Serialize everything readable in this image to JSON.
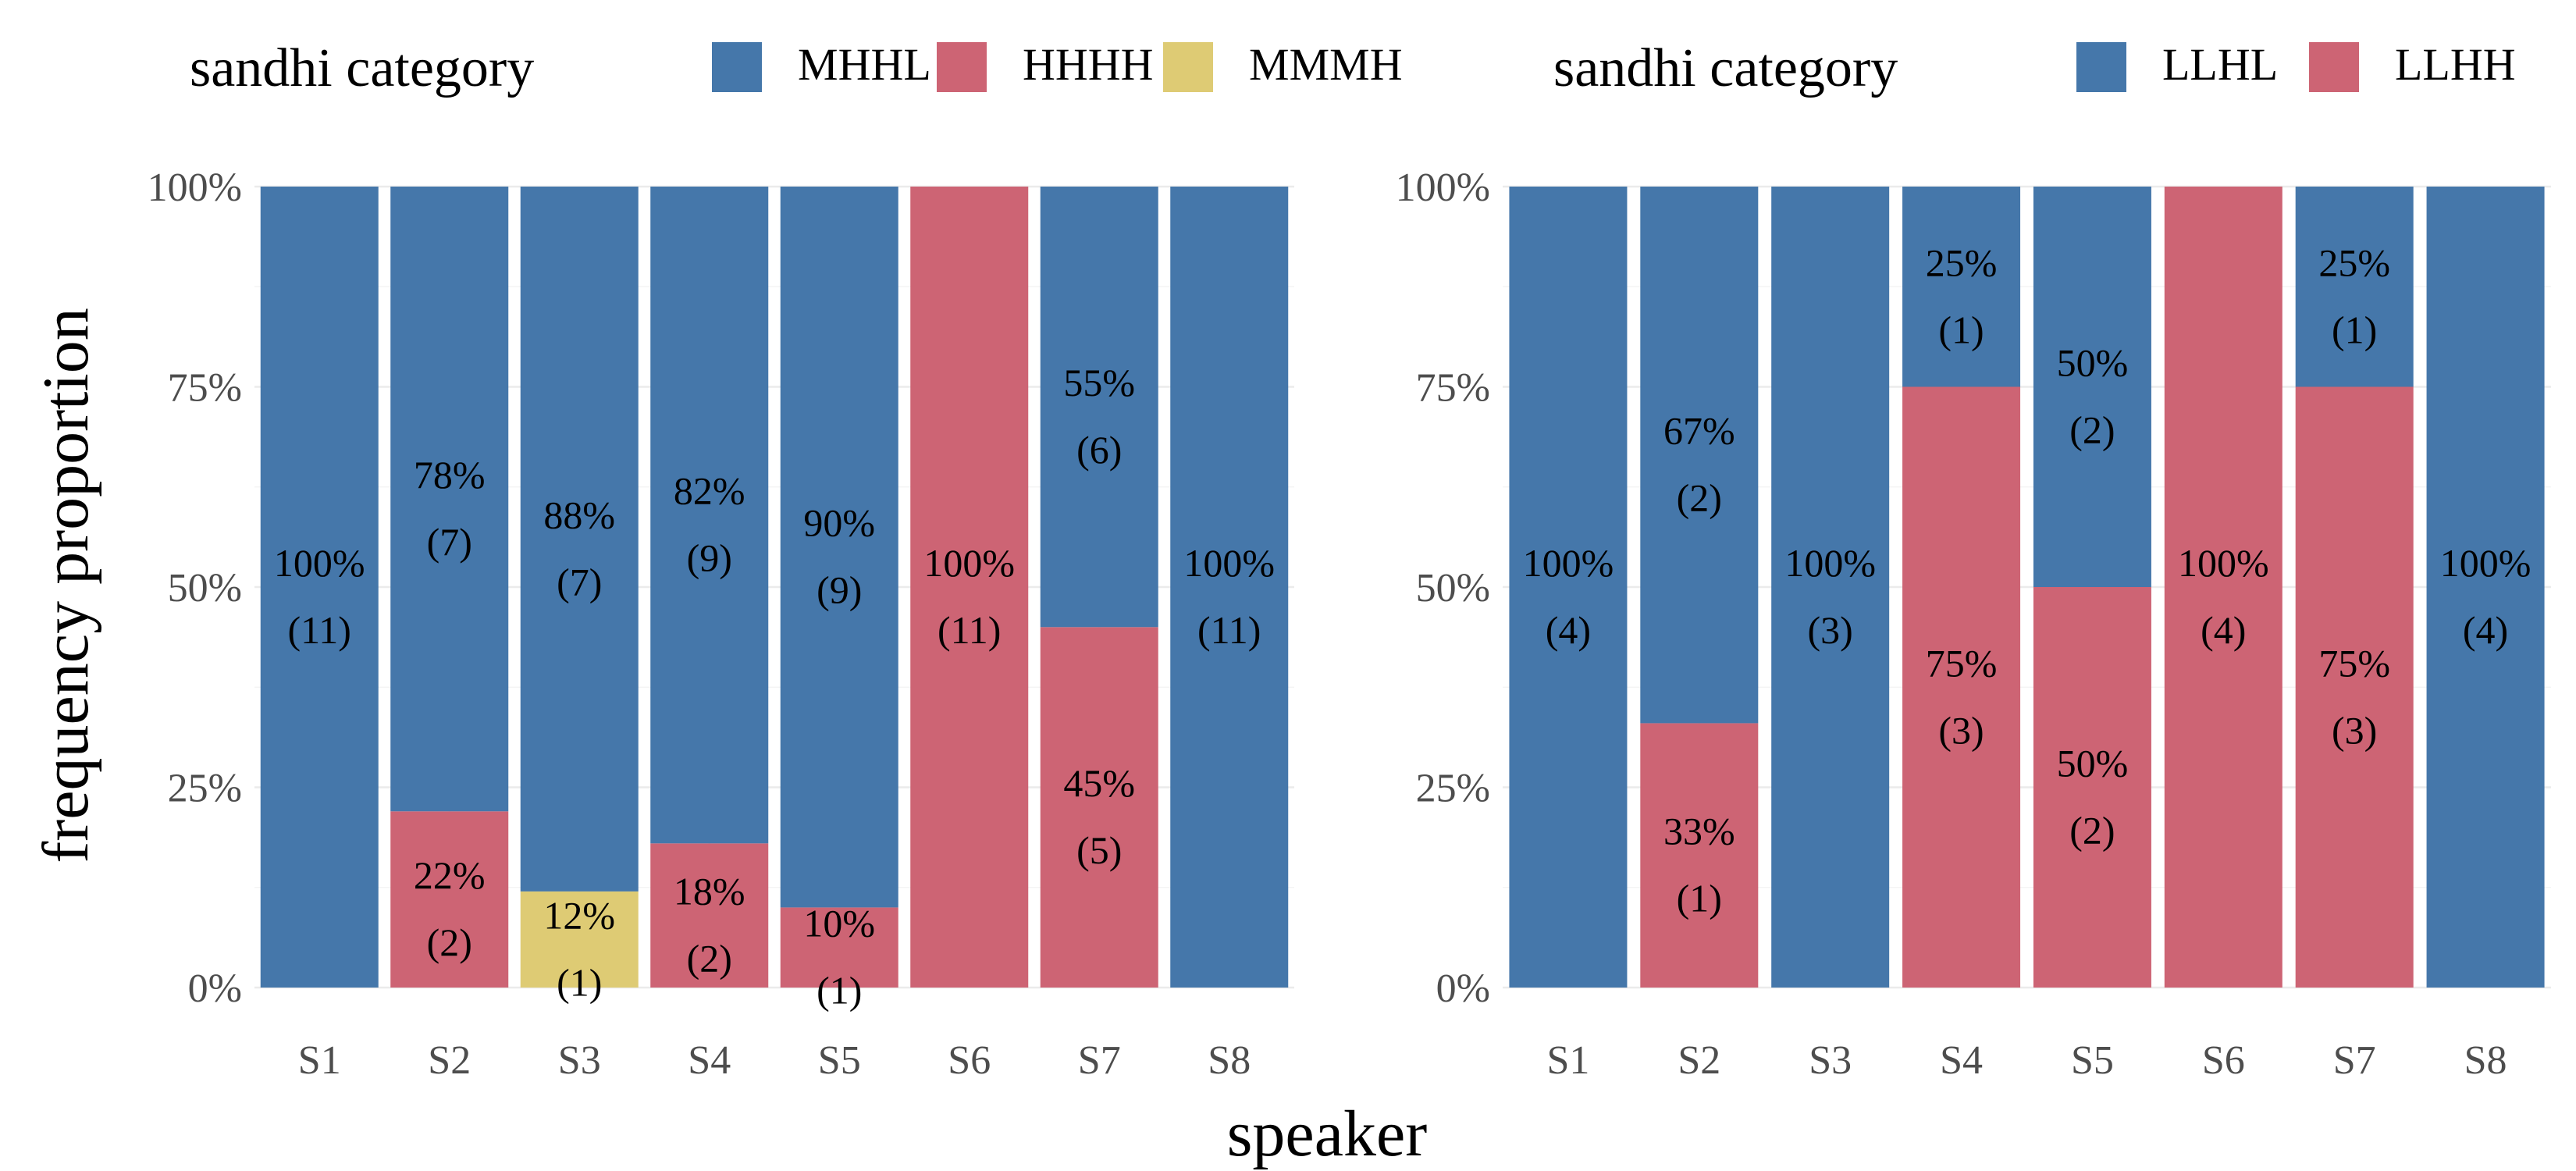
{
  "chart_data": [
    {
      "type": "bar",
      "stacked": true,
      "categories": [
        "S1",
        "S2",
        "S3",
        "S4",
        "S5",
        "S6",
        "S7",
        "S8"
      ],
      "ylim": [
        0,
        1
      ],
      "y_ticks": [
        "0%",
        "25%",
        "50%",
        "75%",
        "100%"
      ],
      "legend_title": "sandhi category",
      "legend_position": "top",
      "grid": true,
      "series": [
        {
          "name": "MMMH",
          "color": "#DECB74",
          "values": [
            0,
            0,
            0.12,
            0,
            0,
            0,
            0,
            0
          ],
          "labels": [
            "",
            "",
            "12%",
            "",
            "",
            "",
            "",
            ""
          ],
          "counts": [
            "",
            "",
            "(1)",
            "",
            "",
            "",
            "",
            ""
          ]
        },
        {
          "name": "HHHH",
          "color": "#CD6474",
          "values": [
            0,
            0.22,
            0,
            0.18,
            0.1,
            1.0,
            0.45,
            0
          ],
          "labels": [
            "",
            "22%",
            "",
            "18%",
            "10%",
            "100%",
            "45%",
            ""
          ],
          "counts": [
            "",
            "(2)",
            "",
            "(2)",
            "(1)",
            "(11)",
            "(5)",
            ""
          ]
        },
        {
          "name": "MHHL",
          "color": "#4577AA",
          "values": [
            1.0,
            0.78,
            0.88,
            0.82,
            0.9,
            0,
            0.55,
            1.0
          ],
          "labels": [
            "100%",
            "78%",
            "88%",
            "82%",
            "90%",
            "",
            "55%",
            "100%"
          ],
          "counts": [
            "(11)",
            "(7)",
            "(7)",
            "(9)",
            "(9)",
            "",
            "(6)",
            "(11)"
          ]
        }
      ],
      "legend_order": [
        "MHHL",
        "HHHH",
        "MMMH"
      ]
    },
    {
      "type": "bar",
      "stacked": true,
      "categories": [
        "S1",
        "S2",
        "S3",
        "S4",
        "S5",
        "S6",
        "S7",
        "S8"
      ],
      "ylim": [
        0,
        1
      ],
      "y_ticks": [
        "0%",
        "25%",
        "50%",
        "75%",
        "100%"
      ],
      "legend_title": "sandhi category",
      "legend_position": "top",
      "grid": true,
      "series": [
        {
          "name": "LLHH",
          "color": "#CD6474",
          "values": [
            0,
            0.33,
            0,
            0.75,
            0.5,
            1.0,
            0.75,
            0
          ],
          "labels": [
            "",
            "33%",
            "",
            "75%",
            "50%",
            "100%",
            "75%",
            ""
          ],
          "counts": [
            "",
            "(1)",
            "",
            "(3)",
            "(2)",
            "(4)",
            "(3)",
            ""
          ]
        },
        {
          "name": "LLHL",
          "color": "#4577AA",
          "values": [
            1.0,
            0.67,
            1.0,
            0.25,
            0.5,
            0,
            0.25,
            1.0
          ],
          "labels": [
            "100%",
            "67%",
            "100%",
            "25%",
            "50%",
            "",
            "25%",
            "100%"
          ],
          "counts": [
            "(4)",
            "(2)",
            "(3)",
            "(1)",
            "(2)",
            "",
            "(1)",
            "(4)"
          ]
        }
      ],
      "legend_order": [
        "LLHL",
        "LLHH"
      ]
    }
  ],
  "axes": {
    "xlabel": "speaker",
    "ylabel": "frequency proportion"
  }
}
